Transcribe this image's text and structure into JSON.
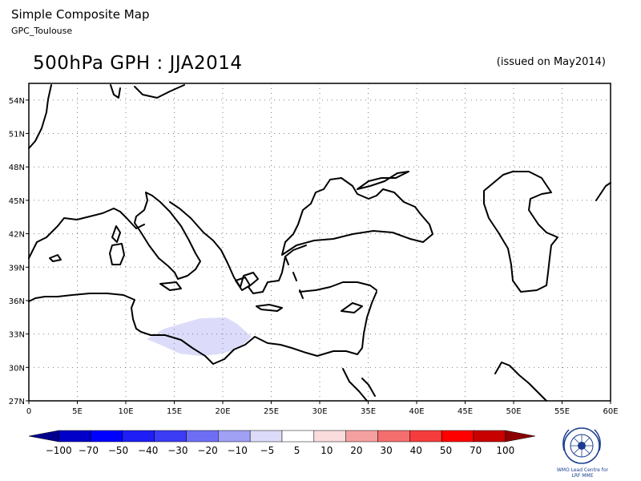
{
  "header": {
    "title": "Simple Composite Map",
    "source": "GPC_Toulouse"
  },
  "map": {
    "title": "500hPa GPH : JJA2014",
    "issued": "(issued on May2014)",
    "lat_ticks": [
      "27N",
      "30N",
      "33N",
      "36N",
      "39N",
      "42N",
      "45N",
      "48N",
      "51N",
      "54N"
    ],
    "lon_ticks": [
      "0",
      "5E",
      "10E",
      "15E",
      "20E",
      "25E",
      "30E",
      "35E",
      "40E",
      "45E",
      "50E",
      "55E",
      "60E"
    ],
    "anomaly_region": {
      "category": "-10 to -5",
      "color": "#dcdcfa"
    },
    "colors": {
      "coast": "#000000",
      "grid": "#808080"
    }
  },
  "colorbar": {
    "labels": [
      "-100",
      "-70",
      "-50",
      "-40",
      "-30",
      "-20",
      "-10",
      "-5",
      "5",
      "10",
      "20",
      "30",
      "40",
      "50",
      "70",
      "100"
    ],
    "colors": [
      "#00008c",
      "#0000c8",
      "#0000ff",
      "#1e1ef5",
      "#3c3cf5",
      "#6e6ef5",
      "#a0a0f5",
      "#dcdcfa",
      "#ffffff",
      "#fadcdc",
      "#f5a0a0",
      "#f56e6e",
      "#f53c3c",
      "#ff0000",
      "#c80000",
      "#8c0000"
    ]
  },
  "logo": {
    "caption_line1": "WMO Lead Centre for",
    "caption_line2": "LRF MME"
  }
}
